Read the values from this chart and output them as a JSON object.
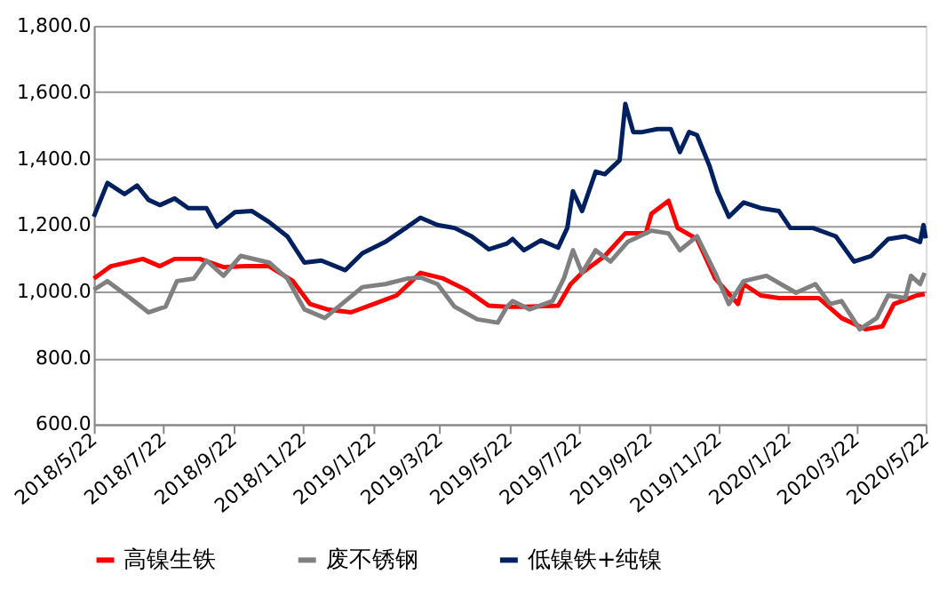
{
  "chart_data": {
    "type": "line",
    "xlim": [
      "2018-05-22",
      "2020-05-22"
    ],
    "xticks": [
      {
        "value": "2018-05-22",
        "label": "2018/5/22"
      },
      {
        "value": "2018-07-22",
        "label": "2018/7/22"
      },
      {
        "value": "2018-09-22",
        "label": "2018/9/22"
      },
      {
        "value": "2018-11-22",
        "label": "2018/11/22"
      },
      {
        "value": "2019-01-22",
        "label": "2019/1/22"
      },
      {
        "value": "2019-03-22",
        "label": "2019/3/22"
      },
      {
        "value": "2019-05-22",
        "label": "2019/5/22"
      },
      {
        "value": "2019-07-22",
        "label": "2019/7/22"
      },
      {
        "value": "2019-09-22",
        "label": "2019/9/22"
      },
      {
        "value": "2019-11-22",
        "label": "2019/11/22"
      },
      {
        "value": "2020-01-22",
        "label": "2020/1/22"
      },
      {
        "value": "2020-03-22",
        "label": "2020/3/22"
      },
      {
        "value": "2020-05-22",
        "label": "2020/5/22"
      }
    ],
    "ylim": [
      600,
      1800
    ],
    "yticks": [
      {
        "value": 600,
        "label": "600.0"
      },
      {
        "value": 800,
        "label": "800.0"
      },
      {
        "value": 1000,
        "label": "1,000.0"
      },
      {
        "value": 1200,
        "label": "1,200.0"
      },
      {
        "value": 1400,
        "label": "1,400.0"
      },
      {
        "value": 1600,
        "label": "1,600.0"
      },
      {
        "value": 1800,
        "label": "1,800.0"
      }
    ],
    "grid": "y",
    "legend": "bottom",
    "line_style": "solid",
    "marker": "none",
    "series": [
      {
        "name": "高镍生铁",
        "color": "#ff0000",
        "x": [
          "2018-05-22",
          "2018-06-06",
          "2018-07-04",
          "2018-07-19",
          "2018-08-01",
          "2018-08-23",
          "2018-09-13",
          "2018-10-03",
          "2018-10-23",
          "2018-11-13",
          "2018-11-28",
          "2018-12-13",
          "2019-01-03",
          "2019-01-23",
          "2019-02-12",
          "2019-03-05",
          "2019-03-25",
          "2019-04-14",
          "2019-05-04",
          "2019-05-20",
          "2019-06-04",
          "2019-07-04",
          "2019-07-15",
          "2019-07-25",
          "2019-08-14",
          "2019-09-01",
          "2019-09-19",
          "2019-09-24",
          "2019-10-09",
          "2019-10-17",
          "2019-11-03",
          "2019-11-19",
          "2019-12-09",
          "2019-12-14",
          "2019-12-29",
          "2020-01-14",
          "2020-02-18",
          "2020-03-09",
          "2020-03-30",
          "2020-04-14",
          "2020-04-24",
          "2020-05-14",
          "2020-05-21"
        ],
        "values": [
          1039,
          1076,
          1098,
          1076,
          1098,
          1098,
          1073,
          1076,
          1076,
          1031,
          962,
          946,
          937,
          962,
          988,
          1056,
          1039,
          1005,
          957,
          954,
          954,
          957,
          1022,
          1056,
          1107,
          1175,
          1175,
          1234,
          1273,
          1191,
          1158,
          1039,
          962,
          1022,
          988,
          980,
          980,
          920,
          886,
          895,
          962,
          988,
          992
        ]
      },
      {
        "name": "废不锈钢",
        "color": "#808080",
        "x": [
          "2018-05-22",
          "2018-06-03",
          "2018-06-23",
          "2018-07-09",
          "2018-07-24",
          "2018-08-03",
          "2018-08-18",
          "2018-08-29",
          "2018-09-13",
          "2018-09-28",
          "2018-10-23",
          "2018-11-08",
          "2018-11-23",
          "2018-12-11",
          "2018-12-29",
          "2019-01-13",
          "2019-02-02",
          "2019-02-22",
          "2019-03-05",
          "2019-03-20",
          "2019-04-04",
          "2019-04-24",
          "2019-05-12",
          "2019-05-20",
          "2019-05-25",
          "2019-06-09",
          "2019-06-29",
          "2019-07-09",
          "2019-07-17",
          "2019-07-25",
          "2019-08-06",
          "2019-08-19",
          "2019-09-03",
          "2019-09-24",
          "2019-10-09",
          "2019-10-19",
          "2019-11-03",
          "2019-11-19",
          "2019-12-01",
          "2019-12-14",
          "2020-01-03",
          "2020-01-29",
          "2020-02-15",
          "2020-02-28",
          "2020-03-09",
          "2020-03-25",
          "2020-04-09",
          "2020-04-19",
          "2020-05-04",
          "2020-05-09",
          "2020-05-17",
          "2020-05-21"
        ],
        "values": [
          1005,
          1031,
          980,
          937,
          954,
          1031,
          1039,
          1093,
          1047,
          1107,
          1087,
          1039,
          946,
          920,
          971,
          1013,
          1022,
          1039,
          1042,
          1022,
          954,
          916,
          906,
          954,
          971,
          946,
          971,
          1039,
          1124,
          1056,
          1124,
          1090,
          1149,
          1183,
          1175,
          1124,
          1166,
          1056,
          962,
          1031,
          1047,
          996,
          1022,
          962,
          971,
          886,
          920,
          988,
          980,
          1047,
          1022,
          1056
        ]
      },
      {
        "name": "低镍铁+纯镍",
        "color": "#002060",
        "x": [
          "2018-05-22",
          "2018-06-03",
          "2018-06-18",
          "2018-06-29",
          "2018-07-09",
          "2018-07-19",
          "2018-08-01",
          "2018-08-13",
          "2018-08-29",
          "2018-09-07",
          "2018-09-23",
          "2018-10-08",
          "2018-10-23",
          "2018-11-08",
          "2018-11-23",
          "2018-12-08",
          "2018-12-29",
          "2019-01-13",
          "2019-02-02",
          "2019-02-20",
          "2019-03-05",
          "2019-03-20",
          "2019-04-04",
          "2019-04-19",
          "2019-05-04",
          "2019-05-20",
          "2019-05-25",
          "2019-06-04",
          "2019-06-19",
          "2019-07-04",
          "2019-07-12",
          "2019-07-17",
          "2019-07-25",
          "2019-08-06",
          "2019-08-14",
          "2019-08-27",
          "2019-09-01",
          "2019-09-08",
          "2019-09-16",
          "2019-09-29",
          "2019-10-11",
          "2019-10-19",
          "2019-10-27",
          "2019-11-03",
          "2019-11-14",
          "2019-11-21",
          "2019-12-01",
          "2019-12-14",
          "2019-12-29",
          "2020-01-14",
          "2020-01-24",
          "2020-02-13",
          "2020-03-04",
          "2020-03-20",
          "2020-04-04",
          "2020-04-19",
          "2020-05-04",
          "2020-05-17",
          "2020-05-20",
          "2020-05-22"
        ],
        "values": [
          1225,
          1327,
          1293,
          1319,
          1276,
          1260,
          1280,
          1251,
          1251,
          1195,
          1239,
          1242,
          1209,
          1166,
          1087,
          1093,
          1064,
          1115,
          1149,
          1191,
          1222,
          1200,
          1191,
          1166,
          1127,
          1144,
          1158,
          1124,
          1154,
          1132,
          1191,
          1302,
          1242,
          1361,
          1353,
          1395,
          1565,
          1480,
          1480,
          1489,
          1489,
          1420,
          1480,
          1471,
          1378,
          1302,
          1225,
          1268,
          1251,
          1242,
          1191,
          1191,
          1166,
          1090,
          1107,
          1158,
          1166,
          1149,
          1200,
          1160
        ]
      }
    ]
  }
}
